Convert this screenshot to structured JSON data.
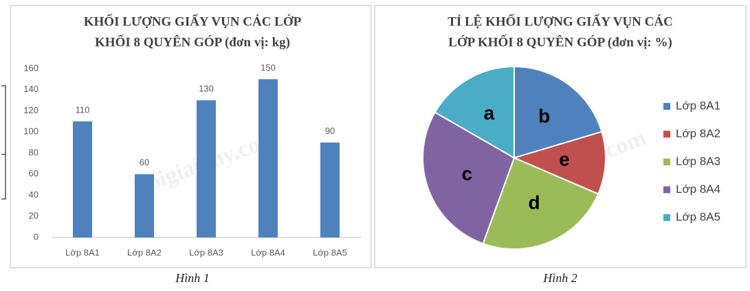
{
  "chart_data": [
    {
      "type": "bar",
      "title": [
        "KHỐI LƯỢNG GIẤY VỤN CÁC LỚP",
        "KHỐI 8 QUYÊN GÓP (đơn vị: kg)"
      ],
      "caption": "Hình 1",
      "watermark": "Loigiaihay.com",
      "categories": [
        "Lớp 8A1",
        "Lớp 8A2",
        "Lớp 8A3",
        "Lớp 8A4",
        "Lớp 8A5"
      ],
      "values": [
        110,
        60,
        130,
        150,
        90
      ],
      "color": "#4f81bd",
      "ylim": [
        0,
        160
      ],
      "yticks": [
        0,
        20,
        40,
        60,
        80,
        100,
        120,
        140,
        160
      ],
      "grid": false
    },
    {
      "type": "pie",
      "title": [
        "TỈ LỆ KHỐI LƯỢNG GIẤY VỤN CÁC",
        "LỚP KHỐI 8 QUYÊN GÓP (đơn vị: %)"
      ],
      "caption": "Hình 2",
      "watermark": "Loigiaihay.com",
      "categories": [
        "Lớp 8A1",
        "Lớp 8A2",
        "Lớp 8A3",
        "Lớp 8A4",
        "Lớp 8A5"
      ],
      "values": [
        20.4,
        11.1,
        24.1,
        27.8,
        16.7
      ],
      "slice_labels": [
        "b",
        "e",
        "d",
        "c",
        "a"
      ],
      "colors": [
        "#4f81bd",
        "#c0504d",
        "#9bbb59",
        "#8064a2",
        "#4bacc6"
      ],
      "legend": "right"
    }
  ]
}
